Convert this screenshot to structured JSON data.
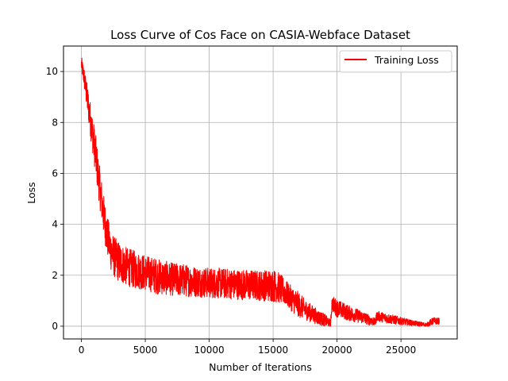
{
  "chart_data": {
    "type": "line",
    "title": "Loss Curve of Cos Face on CASIA-Webface Dataset",
    "xlabel": "Number of Iterations",
    "ylabel": "Loss",
    "xlim": [
      -1400,
      29400
    ],
    "ylim": [
      -0.5,
      11
    ],
    "xticks": [
      0,
      5000,
      10000,
      15000,
      20000,
      25000
    ],
    "yticks": [
      0,
      2,
      4,
      6,
      8,
      10
    ],
    "grid": true,
    "legend_position": "top-right",
    "series": [
      {
        "name": "Training Loss",
        "color": "#ff0000",
        "x": [
          0,
          200,
          500,
          800,
          1100,
          1400,
          1700,
          2000,
          2300,
          2600,
          3000,
          3500,
          4000,
          5000,
          6000,
          7000,
          8000,
          9000,
          10000,
          11000,
          12000,
          13000,
          14000,
          15000,
          15500,
          16000,
          16500,
          17000,
          17500,
          18000,
          18500,
          19000,
          19500,
          19600,
          20000,
          21000,
          22000,
          23000,
          23100,
          24000,
          25000,
          26000,
          27000,
          27500,
          28000
        ],
        "y": [
          10.3,
          9.8,
          8.8,
          7.8,
          6.8,
          5.6,
          4.5,
          3.6,
          3.0,
          2.7,
          2.5,
          2.35,
          2.25,
          2.1,
          1.95,
          1.85,
          1.8,
          1.75,
          1.7,
          1.68,
          1.65,
          1.62,
          1.6,
          1.6,
          1.5,
          1.3,
          1.05,
          0.85,
          0.65,
          0.5,
          0.35,
          0.25,
          0.1,
          0.9,
          0.7,
          0.5,
          0.35,
          0.15,
          0.4,
          0.3,
          0.2,
          0.12,
          0.05,
          0.2,
          0.2
        ],
        "spread": [
          0.3,
          0.4,
          0.6,
          0.7,
          0.8,
          0.8,
          0.8,
          0.8,
          0.8,
          0.8,
          0.8,
          0.75,
          0.75,
          0.7,
          0.7,
          0.65,
          0.65,
          0.6,
          0.6,
          0.6,
          0.6,
          0.6,
          0.6,
          0.65,
          0.6,
          0.5,
          0.5,
          0.5,
          0.4,
          0.35,
          0.3,
          0.25,
          0.15,
          0.3,
          0.35,
          0.3,
          0.25,
          0.15,
          0.2,
          0.2,
          0.15,
          0.1,
          0.08,
          0.15,
          0.12
        ]
      }
    ]
  }
}
